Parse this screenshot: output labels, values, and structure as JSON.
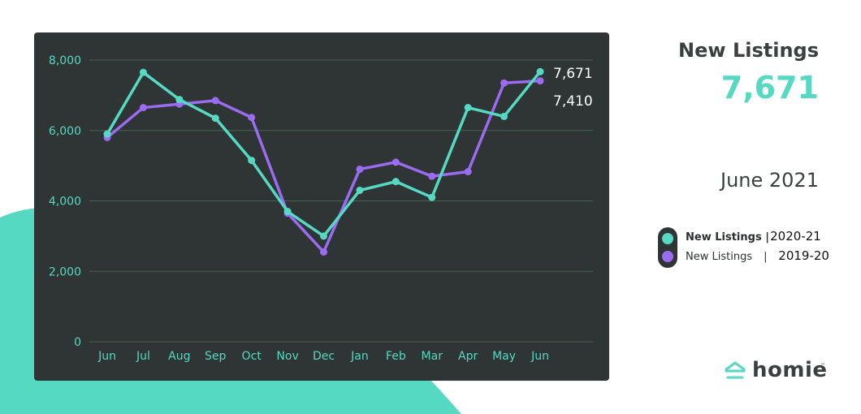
{
  "chart_data": {
    "type": "line",
    "categories": [
      "Jun",
      "Jul",
      "Aug",
      "Sep",
      "Oct",
      "Nov",
      "Dec",
      "Jan",
      "Feb",
      "Mar",
      "Apr",
      "May",
      "Jun"
    ],
    "series": [
      {
        "name": "2020-21",
        "color": "#56d9c3",
        "values": [
          5900,
          7650,
          6880,
          6350,
          5150,
          3700,
          3000,
          4300,
          4550,
          4100,
          6650,
          6400,
          7671
        ]
      },
      {
        "name": "2019-20",
        "color": "#9b6bf2",
        "values": [
          5800,
          6650,
          6750,
          6850,
          6370,
          3650,
          2550,
          4900,
          5100,
          4700,
          4830,
          7350,
          7410
        ]
      }
    ],
    "yticks": [
      "0",
      "2,000",
      "4,000",
      "6,000",
      "8,000"
    ],
    "ylim": [
      0,
      8000
    ],
    "grid": true,
    "end_labels": [
      "7,671",
      "7,410"
    ]
  },
  "stat": {
    "title": "New Listings",
    "value": "7,671",
    "date": "June 2021"
  },
  "legend": [
    {
      "label": "New Listings |",
      "sep": "",
      "year": "2020-21",
      "color": "#56d9c3"
    },
    {
      "label": "New Listings",
      "sep": "|",
      "year": "2019-20",
      "color": "#9b6bf2"
    }
  ],
  "brand": {
    "name": "homie",
    "tm": "™",
    "color": "#56d9c3"
  }
}
